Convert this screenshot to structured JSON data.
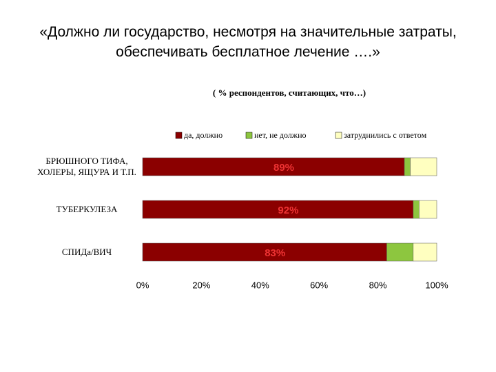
{
  "chart_data": {
    "type": "stacked_bar_horizontal",
    "title": "«Должно ли государство, несмотря на значительные затраты, обеспечивать бесплатное лечение ….»",
    "subtitle": "( % респондентов, считающих, что…)",
    "categories": [
      "БРЮШНОГО ТИФА, ХОЛЕРЫ, ЯЩУРА И Т.П.",
      "ТУБЕРКУЛЕЗА",
      "СПИДа/ВИЧ"
    ],
    "series": [
      {
        "name": "да, должно",
        "color": "#8b0000",
        "values": [
          89,
          92,
          83
        ],
        "value_labels": [
          "89%",
          "92%",
          "83%"
        ]
      },
      {
        "name": "нет, не должно",
        "color": "#8dc63f",
        "values": [
          2,
          2,
          9
        ]
      },
      {
        "name": "затруднились с ответом",
        "color": "#ffffc0",
        "values": [
          9,
          6,
          8
        ]
      }
    ],
    "xlim": [
      0,
      100
    ],
    "xticks": [
      {
        "value": 0,
        "label": "0%"
      },
      {
        "value": 20,
        "label": "20%"
      },
      {
        "value": 40,
        "label": "40%"
      },
      {
        "value": 60,
        "label": "60%"
      },
      {
        "value": 80,
        "label": "80%"
      },
      {
        "value": 100,
        "label": "100%"
      }
    ],
    "legend": "top"
  }
}
